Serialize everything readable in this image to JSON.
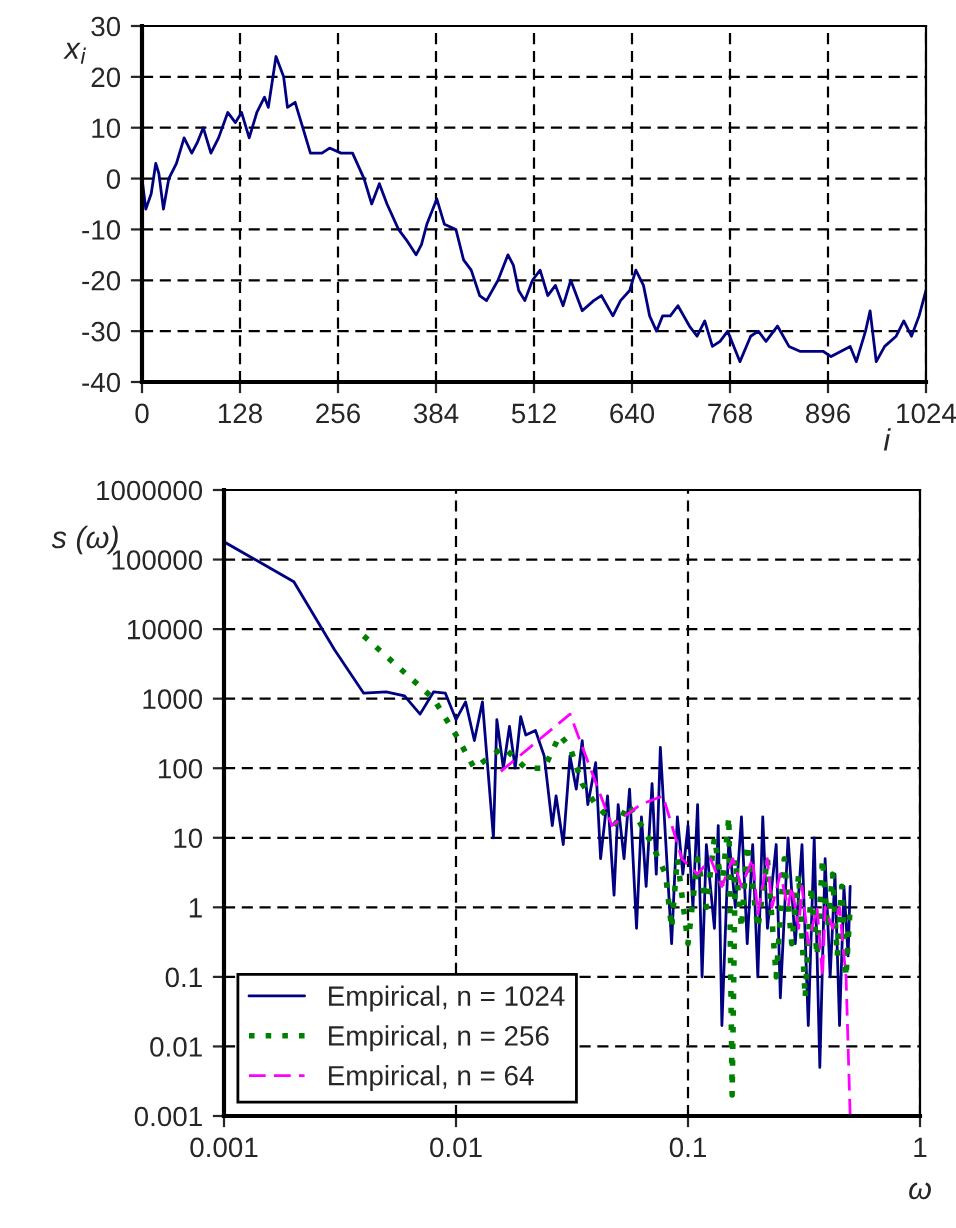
{
  "chart_data": [
    {
      "type": "line",
      "ylabel": "x$_{i}$",
      "xlabel": "i",
      "xlim": [
        0,
        1024
      ],
      "xticks": [
        0,
        128,
        256,
        384,
        512,
        640,
        768,
        896,
        1024
      ],
      "ylim": [
        -40,
        30
      ],
      "yticks": [
        -40,
        -30,
        -20,
        -10,
        0,
        10,
        20,
        30
      ],
      "grid": true,
      "legend": false,
      "series": [
        {
          "color": "#000080",
          "line_style": "solid",
          "x": [
            0,
            5,
            12,
            18,
            22,
            28,
            35,
            45,
            55,
            65,
            72,
            80,
            90,
            100,
            112,
            122,
            130,
            140,
            150,
            160,
            165,
            175,
            185,
            190,
            200,
            210,
            220,
            235,
            245,
            260,
            275,
            290,
            300,
            310,
            320,
            335,
            345,
            358,
            365,
            372,
            385,
            395,
            410,
            420,
            430,
            441,
            450,
            465,
            478,
            485,
            492,
            500,
            510,
            520,
            530,
            540,
            550,
            560,
            575,
            590,
            600,
            615,
            625,
            637,
            645,
            655,
            663,
            672,
            680,
            690,
            700,
            715,
            725,
            735,
            745,
            755,
            765,
            781,
            795,
            805,
            815,
            830,
            845,
            860,
            875,
            890,
            900,
            925,
            933,
            945,
            951,
            959,
            970,
            985,
            995,
            1005,
            1015,
            1024
          ],
          "values": [
            0,
            -6,
            -3,
            3,
            1,
            -6,
            0,
            3,
            8,
            5,
            7,
            10,
            5,
            8,
            13,
            11,
            13,
            8,
            13,
            16,
            14,
            24,
            20,
            14,
            15,
            10,
            5,
            5,
            6,
            5,
            5,
            0,
            -5,
            -1,
            -5,
            -10,
            -12,
            -15,
            -13,
            -9,
            -4,
            -9,
            -10,
            -16,
            -18,
            -23,
            -24,
            -20,
            -15,
            -17,
            -22,
            -24,
            -20,
            -18,
            -23,
            -21,
            -25,
            -20,
            -26,
            -24,
            -23,
            -27,
            -24,
            -22,
            -18,
            -21,
            -27,
            -30,
            -27,
            -27,
            -25,
            -29,
            -31,
            -28,
            -33,
            -32,
            -30,
            -36,
            -31,
            -30,
            -32,
            -29,
            -33,
            -34,
            -34,
            -34,
            -35,
            -33,
            -36,
            -30,
            -26,
            -36,
            -33,
            -31,
            -28,
            -31,
            -27,
            -22
          ]
        }
      ]
    },
    {
      "type": "line",
      "ylabel": "s (ω)",
      "xlabel": "ω",
      "log": "xy",
      "xlim": [
        0.001,
        1
      ],
      "xticks": [
        0.001,
        0.01,
        0.1,
        1
      ],
      "ylim": [
        0.001,
        1000000
      ],
      "yticks": [
        0.001,
        0.01,
        0.1,
        1,
        10,
        100,
        1000,
        10000,
        100000,
        1000000
      ],
      "grid": true,
      "legend": "bottom left",
      "series": [
        {
          "name": "Empirical, n = 1024",
          "color": "#000080",
          "line_style": "solid",
          "x": [
            0.001,
            0.002,
            0.003,
            0.004,
            0.005,
            0.006,
            0.007,
            0.008,
            0.009,
            0.01,
            0.011,
            0.012,
            0.013,
            0.0145,
            0.015,
            0.016,
            0.017,
            0.018,
            0.019,
            0.02,
            0.022,
            0.024,
            0.026,
            0.027,
            0.029,
            0.031,
            0.033,
            0.035,
            0.037,
            0.04,
            0.042,
            0.045,
            0.048,
            0.05,
            0.053,
            0.056,
            0.06,
            0.063,
            0.066,
            0.07,
            0.073,
            0.076,
            0.08,
            0.085,
            0.09,
            0.095,
            0.1,
            0.105,
            0.11,
            0.115,
            0.12,
            0.13,
            0.135,
            0.14,
            0.15,
            0.16,
            0.17,
            0.18,
            0.19,
            0.2,
            0.21,
            0.22,
            0.24,
            0.25,
            0.27,
            0.29,
            0.31,
            0.33,
            0.35,
            0.37,
            0.39,
            0.41,
            0.43,
            0.45,
            0.47,
            0.49,
            0.5
          ],
          "values": [
            180000,
            48000,
            5000,
            1200,
            1250,
            1100,
            600,
            1250,
            1200,
            500,
            900,
            250,
            900,
            10,
            500,
            100,
            400,
            100,
            550,
            300,
            350,
            150,
            15,
            40,
            8,
            150,
            50,
            250,
            30,
            120,
            5,
            40,
            1.5,
            30,
            5,
            50,
            0.5,
            20,
            2,
            60,
            3,
            200,
            10,
            0.3,
            20,
            3,
            15,
            1,
            30,
            0.1,
            8,
            0.5,
            15,
            0.02,
            10,
            1,
            20,
            0.3,
            8,
            0.1,
            20,
            0.5,
            8,
            0.05,
            10,
            0.3,
            8,
            0.02,
            10,
            0.005,
            5,
            0.1,
            3,
            0.02,
            2,
            0.2,
            2
          ]
        },
        {
          "name": "Empirical, n = 256",
          "color": "#008000",
          "line_style": "dotted",
          "x": [
            0.004,
            0.008,
            0.01,
            0.012,
            0.016,
            0.02,
            0.024,
            0.028,
            0.031,
            0.035,
            0.04,
            0.045,
            0.05,
            0.055,
            0.06,
            0.07,
            0.08,
            0.085,
            0.09,
            0.1,
            0.11,
            0.12,
            0.13,
            0.14,
            0.15,
            0.155,
            0.16,
            0.17,
            0.18,
            0.2,
            0.22,
            0.24,
            0.26,
            0.28,
            0.3,
            0.32,
            0.34,
            0.36,
            0.38,
            0.4,
            0.42,
            0.44,
            0.46,
            0.48,
            0.5
          ],
          "values": [
            8000,
            1000,
            300,
            100,
            200,
            100,
            100,
            300,
            200,
            60,
            30,
            20,
            15,
            30,
            20,
            8,
            3,
            0.5,
            5,
            0.3,
            5,
            1,
            10,
            2,
            20,
            0.002,
            5,
            0.5,
            8,
            0.5,
            5,
            0.1,
            5,
            0.3,
            3,
            0.05,
            2,
            0.2,
            5,
            0.5,
            3,
            0.2,
            2,
            0.1,
            1
          ]
        },
        {
          "name": "Empirical, n = 64",
          "color": "#ff00ff",
          "line_style": "dashed",
          "x": [
            0.0156,
            0.031,
            0.047,
            0.0625,
            0.078,
            0.094,
            0.11,
            0.125,
            0.14,
            0.156,
            0.17,
            0.19,
            0.2,
            0.22,
            0.23,
            0.25,
            0.27,
            0.28,
            0.3,
            0.31,
            0.33,
            0.36,
            0.38,
            0.39,
            0.42,
            0.45,
            0.47,
            0.48,
            0.5
          ],
          "values": [
            90,
            600,
            15,
            30,
            40,
            5,
            3,
            5,
            2,
            5,
            2,
            5,
            0.8,
            5,
            1,
            3,
            1,
            2,
            0.5,
            2,
            0.3,
            1,
            0.1,
            1,
            0.5,
            1,
            0.2,
            0.1,
            0.001
          ]
        }
      ]
    }
  ]
}
